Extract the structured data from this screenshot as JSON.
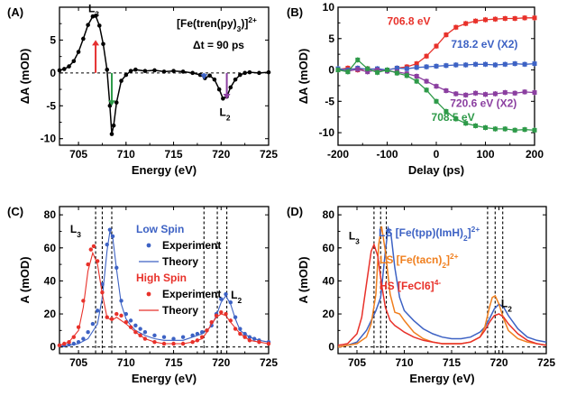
{
  "chart_data": [
    {
      "panel": "(A)",
      "type": "line",
      "title": "[Fe(tren(py)3)]2+",
      "subtitle": "Δt = 90 ps",
      "xlabel": "Energy (eV)",
      "ylabel": "ΔA (mOD)",
      "xlim": [
        703,
        725
      ],
      "ylim": [
        -11,
        10
      ],
      "xticks": [
        705,
        710,
        715,
        720,
        725
      ],
      "yticks": [
        -10,
        -5,
        0,
        5
      ],
      "zero_line": true,
      "series": [
        {
          "color": "#000000",
          "marker": "circle",
          "x": [
            703,
            703.5,
            704,
            704.5,
            705,
            705.5,
            706,
            706.5,
            706.8,
            707.2,
            707.6,
            708,
            708.3,
            708.5,
            708.7,
            709,
            709.5,
            710,
            710.5,
            711,
            712,
            713,
            714,
            715,
            716,
            717,
            717.8,
            718.3,
            718.8,
            719.3,
            719.8,
            720.2,
            720.6,
            721,
            721.5,
            722,
            722.5,
            723,
            724,
            725
          ],
          "y": [
            0.4,
            0.6,
            1.0,
            1.8,
            3.2,
            5.2,
            7.3,
            8.6,
            8.7,
            7.2,
            4.4,
            0.5,
            -5.0,
            -9.3,
            -8.0,
            -4.5,
            -1.2,
            -0.3,
            0.3,
            0.5,
            0.3,
            0.4,
            0.2,
            0.3,
            0.2,
            0.0,
            -0.3,
            -0.8,
            -0.4,
            -1.0,
            -2.5,
            -3.9,
            -3.6,
            -2.2,
            -1.0,
            -0.3,
            0.0,
            0.1,
            0.0,
            0.1
          ]
        }
      ],
      "annotations": [
        {
          "text": "L3",
          "x": 706.6,
          "y": 8.7
        },
        {
          "text": "L2",
          "x": 720.4,
          "y": -4.1
        }
      ],
      "arrows": [
        {
          "x": 706.8,
          "from": 0,
          "to": 5,
          "color": "#e53030"
        },
        {
          "x": 708.5,
          "from": 0,
          "to": -5,
          "color": "#2e9a49"
        },
        {
          "x": 718.2,
          "from": 0,
          "to": -1,
          "color": "#3d62c4"
        },
        {
          "x": 720.6,
          "from": 0,
          "to": -4,
          "color": "#8b3fa0"
        }
      ]
    },
    {
      "panel": "(B)",
      "type": "scatter",
      "xlabel": "Delay (ps)",
      "ylabel": "ΔA (mOD)",
      "xlim": [
        -200,
        200
      ],
      "ylim": [
        -12,
        10
      ],
      "xticks": [
        -200,
        -100,
        0,
        100,
        200
      ],
      "yticks": [
        -10,
        -5,
        0,
        5,
        10
      ],
      "series": [
        {
          "name": "706.8 eV",
          "color": "#e8312a",
          "x": [
            -200,
            -180,
            -160,
            -140,
            -120,
            -100,
            -80,
            -60,
            -40,
            -20,
            0,
            20,
            40,
            60,
            80,
            100,
            120,
            140,
            160,
            180,
            200
          ],
          "y": [
            0.1,
            0.3,
            0.0,
            0.2,
            0.1,
            0.0,
            0.3,
            0.5,
            1.0,
            2.2,
            3.8,
            5.6,
            6.8,
            7.4,
            7.8,
            8.0,
            8.1,
            8.2,
            8.2,
            8.3,
            8.3
          ]
        },
        {
          "name": "718.2 eV (X2)",
          "color": "#3d62c4",
          "x": [
            -200,
            -180,
            -160,
            -140,
            -120,
            -100,
            -80,
            -60,
            -40,
            -20,
            0,
            20,
            40,
            60,
            80,
            100,
            120,
            140,
            160,
            180,
            200
          ],
          "y": [
            0.2,
            0.0,
            0.3,
            0.1,
            0.2,
            0.0,
            0.3,
            0.2,
            0.4,
            0.5,
            0.6,
            0.7,
            0.8,
            0.8,
            0.9,
            0.9,
            0.8,
            0.9,
            1.0,
            0.9,
            1.0
          ]
        },
        {
          "name": "720.6 eV (X2)",
          "color": "#8b3fa0",
          "x": [
            -200,
            -180,
            -160,
            -140,
            -120,
            -100,
            -80,
            -60,
            -40,
            -20,
            0,
            20,
            40,
            60,
            80,
            100,
            120,
            140,
            160,
            180,
            200
          ],
          "y": [
            0.0,
            -0.2,
            0.1,
            -0.3,
            0.0,
            -0.2,
            -0.3,
            -0.6,
            -1.0,
            -1.8,
            -2.6,
            -3.3,
            -3.8,
            -4.0,
            -3.7,
            -3.9,
            -3.8,
            -3.6,
            -3.7,
            -3.5,
            -3.6
          ]
        },
        {
          "name": "708.5 eV",
          "color": "#2e9a49",
          "x": [
            -200,
            -180,
            -160,
            -140,
            -120,
            -100,
            -80,
            -60,
            -40,
            -20,
            0,
            20,
            40,
            60,
            80,
            100,
            120,
            140,
            160,
            180,
            200
          ],
          "y": [
            0.0,
            -0.3,
            1.6,
            0.2,
            -0.4,
            0.0,
            -0.5,
            -0.9,
            -1.8,
            -3.2,
            -5.0,
            -6.6,
            -7.8,
            -8.5,
            -8.9,
            -9.2,
            -9.4,
            -9.4,
            -9.6,
            -9.5,
            -9.6
          ]
        }
      ],
      "series_labels": [
        {
          "series": "706.8 eV",
          "x": -100,
          "y": 7.2
        },
        {
          "series": "718.2 eV (X2)",
          "x": 30,
          "y": 3.5
        },
        {
          "series": "720.6 eV (X2)",
          "x": 28,
          "y": -5.9
        },
        {
          "series": "708.5 eV",
          "x": -10,
          "y": -8.1
        }
      ]
    },
    {
      "panel": "(C)",
      "type": "line",
      "xlabel": "Energy (eV)",
      "ylabel": "A (mOD)",
      "xlim": [
        703,
        725
      ],
      "ylim": [
        -4,
        85
      ],
      "xticks": [
        705,
        710,
        715,
        720,
        725
      ],
      "yticks": [
        0,
        20,
        40,
        60,
        80
      ],
      "vlines": [
        706.8,
        707.5,
        708.5,
        718.2,
        719.6,
        720.6
      ],
      "annotations": [
        {
          "text": "L3",
          "x": 704.7,
          "y": 67
        },
        {
          "text": "L2",
          "x": 721.6,
          "y": 27
        }
      ],
      "legend": [
        {
          "text": "Low Spin",
          "color": "#3d62c4",
          "kind": "header"
        },
        {
          "text": "Experiment",
          "color": "#3d62c4",
          "kind": "marker"
        },
        {
          "text": "Theory",
          "color": "#3d62c4",
          "kind": "line"
        },
        {
          "text": "High Spin",
          "color": "#e8312a",
          "kind": "header"
        },
        {
          "text": "Experiment",
          "color": "#e8312a",
          "kind": "marker"
        },
        {
          "text": "Theory",
          "color": "#e8312a",
          "kind": "line"
        }
      ],
      "series": [
        {
          "name": "Low Spin Experiment",
          "color": "#3d62c4",
          "style": "markers",
          "x": [
            703,
            703.5,
            704,
            704.5,
            705,
            705.5,
            706,
            706.5,
            707,
            707.5,
            708,
            708.3,
            708.6,
            709,
            709.5,
            710,
            710.5,
            711,
            711.5,
            712,
            713,
            714,
            715,
            716,
            717,
            717.5,
            718,
            718.5,
            719,
            719.5,
            720,
            720.5,
            721,
            721.5,
            722,
            722.5,
            723,
            723.5,
            724,
            725
          ],
          "y": [
            1,
            1,
            1.5,
            2,
            3,
            5,
            9,
            14,
            22,
            38,
            62,
            71,
            67,
            48,
            28,
            20,
            16,
            13,
            11,
            9,
            7,
            6,
            5,
            6,
            7,
            8,
            9,
            10,
            13,
            20,
            29,
            32,
            27,
            18,
            11,
            8,
            6,
            5,
            4,
            3
          ]
        },
        {
          "name": "Low Spin Theory",
          "color": "#3d62c4",
          "style": "line",
          "x": [
            703,
            704,
            705,
            706,
            707,
            707.5,
            708,
            708.3,
            708.6,
            709,
            709.5,
            710,
            710.5,
            711,
            712,
            713,
            714,
            715,
            716,
            717,
            718,
            718.5,
            719,
            719.5,
            720,
            720.5,
            721,
            721.5,
            722,
            723,
            724,
            725
          ],
          "y": [
            0.5,
            1,
            2,
            5,
            14,
            30,
            58,
            70,
            66,
            47,
            26,
            17,
            13,
            10,
            7,
            5,
            4,
            4,
            4,
            6,
            8,
            10,
            13,
            19,
            27,
            31,
            26,
            17,
            10,
            6,
            4,
            3
          ]
        },
        {
          "name": "High Spin Experiment",
          "color": "#e8312a",
          "style": "markers",
          "x": [
            703,
            703.5,
            704,
            704.5,
            705,
            705.5,
            706,
            706.3,
            706.6,
            707,
            707.5,
            708,
            708.5,
            709,
            709.5,
            710,
            710.5,
            711,
            711.5,
            712,
            713,
            714,
            715,
            716,
            717,
            717.5,
            718,
            718.5,
            719,
            719.5,
            720,
            720.5,
            721,
            721.5,
            722,
            722.5,
            723,
            724,
            725
          ],
          "y": [
            1,
            2,
            3,
            6,
            12,
            28,
            50,
            59,
            61,
            52,
            33,
            18,
            17,
            20,
            19,
            15,
            12,
            9,
            7,
            5,
            3,
            2,
            2,
            2,
            3,
            4,
            6,
            10,
            15,
            19,
            21,
            20,
            16,
            11,
            8,
            6,
            4,
            3,
            2
          ]
        },
        {
          "name": "High Spin Theory",
          "color": "#e8312a",
          "style": "line",
          "x": [
            703,
            704,
            705,
            705.5,
            706,
            706.5,
            707,
            707.5,
            708,
            708.5,
            709,
            710,
            711,
            712,
            713,
            714,
            715,
            716,
            717,
            718,
            718.5,
            719,
            719.5,
            720,
            720.5,
            721,
            722,
            723,
            724,
            725
          ],
          "y": [
            1,
            3,
            10,
            24,
            46,
            57,
            50,
            32,
            18,
            16,
            18,
            14,
            9,
            5,
            3,
            2,
            2,
            2,
            3,
            5,
            9,
            14,
            18,
            20,
            19,
            15,
            8,
            4,
            3,
            2
          ]
        }
      ]
    },
    {
      "panel": "(D)",
      "type": "line",
      "xlabel": "Energy (eV)",
      "ylabel": "A (mOD)",
      "xlim": [
        703,
        725
      ],
      "ylim": [
        -4,
        85
      ],
      "xticks": [
        705,
        710,
        715,
        720,
        725
      ],
      "yticks": [
        0,
        20,
        40,
        60,
        80
      ],
      "vlines": [
        706.8,
        707.5,
        708.1,
        718.8,
        719.6,
        720.4
      ],
      "annotations": [
        {
          "text": "L3",
          "x": 704.7,
          "y": 63
        },
        {
          "text": "L2",
          "x": 720.8,
          "y": 22
        }
      ],
      "legend": [
        {
          "text": "LS [Fe(tpp)(ImH)2]2+",
          "color": "#3d62c4"
        },
        {
          "text": "LS [Fe(tacn)2]2+",
          "color": "#f07f1e"
        },
        {
          "text": "HS [FeCl6]4-",
          "color": "#e8312a"
        }
      ],
      "series": [
        {
          "name": "LS [Fe(tpp)(ImH)2]2+",
          "color": "#3d62c4",
          "x": [
            703,
            704,
            705,
            706,
            706.5,
            707,
            707.5,
            708,
            708.3,
            708.6,
            709,
            709.5,
            710,
            711,
            712,
            713,
            714,
            715,
            716,
            717,
            718,
            718.5,
            719,
            719.5,
            720,
            720.5,
            721,
            722,
            723,
            724,
            725
          ],
          "y": [
            0,
            1,
            3,
            10,
            16,
            22,
            30,
            58,
            72,
            68,
            48,
            30,
            22,
            16,
            11,
            8,
            6,
            5,
            5,
            6,
            9,
            12,
            17,
            23,
            26,
            24,
            19,
            11,
            6,
            4,
            3
          ]
        },
        {
          "name": "LS [Fe(tacn)2]2+",
          "color": "#f07f1e",
          "x": [
            703,
            704,
            705,
            706,
            706.5,
            707,
            707.3,
            707.6,
            708,
            708.5,
            709,
            709.5,
            710,
            711,
            712,
            713,
            714,
            715,
            716,
            717,
            718,
            718.5,
            719,
            719.3,
            719.6,
            720,
            720.5,
            721,
            722,
            723,
            724,
            725
          ],
          "y": [
            0,
            1,
            2,
            6,
            14,
            32,
            62,
            73,
            58,
            32,
            21,
            20,
            16,
            9,
            5,
            3,
            2,
            2,
            2,
            3,
            6,
            12,
            24,
            30,
            31,
            26,
            17,
            10,
            5,
            3,
            2,
            1
          ]
        },
        {
          "name": "HS [FeCl6]4-",
          "color": "#e8312a",
          "x": [
            703,
            704,
            705,
            705.5,
            706,
            706.5,
            706.8,
            707.2,
            707.6,
            708,
            708.5,
            709,
            709.5,
            710,
            711,
            712,
            713,
            714,
            715,
            716,
            717,
            718,
            718.5,
            719,
            719.5,
            720,
            720.5,
            721,
            722,
            723,
            724,
            725
          ],
          "y": [
            1,
            2,
            8,
            18,
            38,
            58,
            62,
            55,
            38,
            24,
            16,
            13,
            11,
            9,
            6,
            4,
            3,
            2,
            2,
            2,
            3,
            6,
            10,
            15,
            19,
            20,
            18,
            14,
            8,
            4,
            2,
            1
          ]
        }
      ]
    }
  ]
}
